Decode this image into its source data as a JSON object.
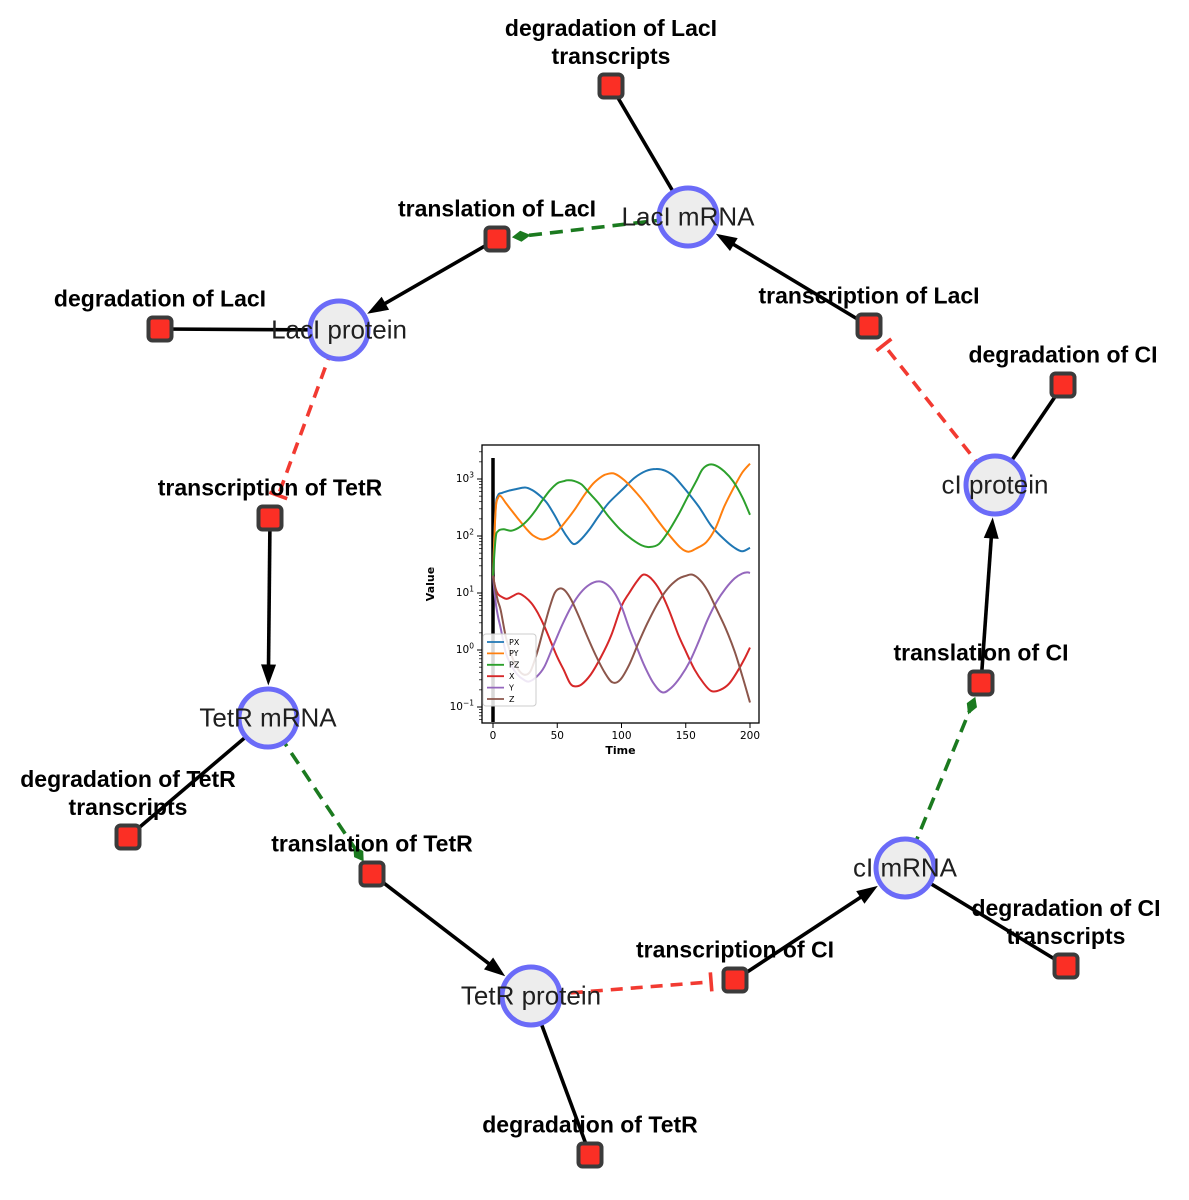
{
  "diagram": {
    "colors": {
      "species_fill": "#ededed",
      "species_border": "#6b6bf8",
      "reaction_fill": "#fb2f25",
      "reaction_border": "#3b3b3b",
      "edge": "#000000",
      "modifier_edge": "#1b7a1f",
      "inhibition_edge": "#f23a31"
    },
    "species": [
      {
        "id": "lacI_mRNA",
        "label": "LacI mRNA"
      },
      {
        "id": "lacI_protein",
        "label": "LacI protein"
      },
      {
        "id": "cI_protein",
        "label": "cI protein"
      },
      {
        "id": "tetR_mRNA",
        "label": "TetR mRNA"
      },
      {
        "id": "cI_mRNA",
        "label": "cI mRNA"
      },
      {
        "id": "tetR_protein",
        "label": "TetR protein"
      }
    ],
    "reactions": [
      {
        "id": "deg_lacI_tr",
        "label_lines": [
          "degradation of LacI",
          "transcripts"
        ]
      },
      {
        "id": "translation_lacI",
        "label_lines": [
          "translation of LacI"
        ]
      },
      {
        "id": "transcription_lacI",
        "label_lines": [
          "transcription of LacI"
        ]
      },
      {
        "id": "deg_lacI",
        "label_lines": [
          "degradation of LacI"
        ]
      },
      {
        "id": "deg_cI",
        "label_lines": [
          "degradation of CI"
        ]
      },
      {
        "id": "transcription_tetR",
        "label_lines": [
          "transcription of TetR"
        ]
      },
      {
        "id": "translation_cI",
        "label_lines": [
          "translation of CI"
        ]
      },
      {
        "id": "deg_tetR_tr",
        "label_lines": [
          "degradation of TetR",
          "transcripts"
        ]
      },
      {
        "id": "translation_tetR",
        "label_lines": [
          "translation of TetR"
        ]
      },
      {
        "id": "deg_cI_tr",
        "label_lines": [
          "degradation of CI",
          "transcripts"
        ]
      },
      {
        "id": "transcription_cI",
        "label_lines": [
          "transcription of CI"
        ]
      },
      {
        "id": "deg_tetR",
        "label_lines": [
          "degradation of TetR"
        ]
      }
    ],
    "edges": [
      {
        "source": "lacI_mRNA",
        "target": "deg_lacI_tr",
        "type": "reactant"
      },
      {
        "source": "transcription_lacI",
        "target": "lacI_mRNA",
        "type": "product"
      },
      {
        "source": "lacI_mRNA",
        "target": "translation_lacI",
        "type": "modifier"
      },
      {
        "source": "translation_lacI",
        "target": "lacI_protein",
        "type": "product"
      },
      {
        "source": "lacI_protein",
        "target": "deg_lacI",
        "type": "reactant"
      },
      {
        "source": "lacI_protein",
        "target": "transcription_tetR",
        "type": "inhibition"
      },
      {
        "source": "transcription_tetR",
        "target": "tetR_mRNA",
        "type": "product"
      },
      {
        "source": "tetR_mRNA",
        "target": "deg_tetR_tr",
        "type": "reactant"
      },
      {
        "source": "tetR_mRNA",
        "target": "translation_tetR",
        "type": "modifier"
      },
      {
        "source": "translation_tetR",
        "target": "tetR_protein",
        "type": "product"
      },
      {
        "source": "tetR_protein",
        "target": "deg_tetR",
        "type": "reactant"
      },
      {
        "source": "tetR_protein",
        "target": "transcription_cI",
        "type": "inhibition"
      },
      {
        "source": "transcription_cI",
        "target": "cI_mRNA",
        "type": "product"
      },
      {
        "source": "cI_mRNA",
        "target": "deg_cI_tr",
        "type": "reactant"
      },
      {
        "source": "cI_mRNA",
        "target": "translation_cI",
        "type": "modifier"
      },
      {
        "source": "translation_cI",
        "target": "cI_protein",
        "type": "product"
      },
      {
        "source": "cI_protein",
        "target": "deg_cI",
        "type": "reactant"
      },
      {
        "source": "cI_protein",
        "target": "transcription_lacI",
        "type": "inhibition"
      }
    ]
  },
  "chart_data": {
    "type": "line",
    "x_label": "Time",
    "y_label": "Value",
    "x_ticks": [
      0,
      50,
      100,
      150,
      200
    ],
    "y_scale": "log",
    "y_tick_exponents": [
      3,
      2,
      1,
      0,
      -1
    ],
    "x_range": [
      -8.5,
      208.5
    ],
    "y_exp_range": [
      -1.28,
      3.6
    ],
    "grid": false,
    "legend_position": "lower left",
    "initial_marker_x": 0,
    "series": [
      {
        "name": "PX",
        "color": "#1f77b4",
        "points": [
          [
            0,
            20
          ],
          [
            2,
            300
          ],
          [
            4,
            520
          ],
          [
            7,
            570
          ],
          [
            12,
            620
          ],
          [
            18,
            665
          ],
          [
            25,
            710
          ],
          [
            30,
            650
          ],
          [
            36,
            520
          ],
          [
            42,
            380
          ],
          [
            48,
            230
          ],
          [
            54,
            130
          ],
          [
            59,
            88
          ],
          [
            63,
            72
          ],
          [
            68,
            85
          ],
          [
            75,
            130
          ],
          [
            82,
            220
          ],
          [
            90,
            380
          ],
          [
            100,
            630
          ],
          [
            110,
            1040
          ],
          [
            119,
            1380
          ],
          [
            127,
            1500
          ],
          [
            134,
            1400
          ],
          [
            141,
            1100
          ],
          [
            150,
            640
          ],
          [
            160,
            330
          ],
          [
            170,
            150
          ],
          [
            180,
            87
          ],
          [
            188,
            62
          ],
          [
            194,
            54
          ],
          [
            200,
            62
          ]
        ]
      },
      {
        "name": "PY",
        "color": "#ff7f0e",
        "points": [
          [
            0,
            20
          ],
          [
            2,
            280
          ],
          [
            4,
            470
          ],
          [
            6,
            500
          ],
          [
            10,
            380
          ],
          [
            15,
            270
          ],
          [
            20,
            195
          ],
          [
            26,
            133
          ],
          [
            31,
            103
          ],
          [
            38,
            87
          ],
          [
            44,
            95
          ],
          [
            50,
            120
          ],
          [
            57,
            185
          ],
          [
            64,
            300
          ],
          [
            71,
            520
          ],
          [
            78,
            830
          ],
          [
            85,
            1120
          ],
          [
            90,
            1240
          ],
          [
            95,
            1230
          ],
          [
            102,
            960
          ],
          [
            110,
            630
          ],
          [
            119,
            360
          ],
          [
            128,
            190
          ],
          [
            137,
            105
          ],
          [
            146,
            62
          ],
          [
            152,
            53
          ],
          [
            158,
            60
          ],
          [
            166,
            78
          ],
          [
            173,
            135
          ],
          [
            180,
            330
          ],
          [
            187,
            680
          ],
          [
            194,
            1300
          ],
          [
            200,
            1860
          ]
        ]
      },
      {
        "name": "PZ",
        "color": "#2ca02c",
        "points": [
          [
            0,
            20
          ],
          [
            2,
            90
          ],
          [
            4,
            122
          ],
          [
            8,
            131
          ],
          [
            14,
            124
          ],
          [
            20,
            140
          ],
          [
            26,
            180
          ],
          [
            32,
            260
          ],
          [
            38,
            410
          ],
          [
            44,
            620
          ],
          [
            50,
            840
          ],
          [
            55,
            915
          ],
          [
            58,
            950
          ],
          [
            63,
            925
          ],
          [
            69,
            800
          ],
          [
            75,
            565
          ],
          [
            82,
            380
          ],
          [
            90,
            220
          ],
          [
            99,
            130
          ],
          [
            108,
            88
          ],
          [
            116,
            68
          ],
          [
            122,
            64
          ],
          [
            129,
            72
          ],
          [
            136,
            115
          ],
          [
            144,
            230
          ],
          [
            151,
            460
          ],
          [
            158,
            900
          ],
          [
            163,
            1480
          ],
          [
            168,
            1780
          ],
          [
            173,
            1740
          ],
          [
            180,
            1360
          ],
          [
            187,
            900
          ],
          [
            194,
            480
          ],
          [
            200,
            235
          ]
        ]
      },
      {
        "name": "X",
        "color": "#d62728",
        "points": [
          [
            0,
            20
          ],
          [
            2,
            12
          ],
          [
            4,
            9.5
          ],
          [
            7,
            8.5
          ],
          [
            11,
            7.9
          ],
          [
            16,
            9
          ],
          [
            20,
            9.8
          ],
          [
            25,
            8.5
          ],
          [
            30,
            6.6
          ],
          [
            35,
            4.4
          ],
          [
            40,
            2.6
          ],
          [
            45,
            1.4
          ],
          [
            50,
            0.75
          ],
          [
            55,
            0.45
          ],
          [
            60,
            0.26
          ],
          [
            64,
            0.23
          ],
          [
            69,
            0.25
          ],
          [
            76,
            0.37
          ],
          [
            84,
            0.75
          ],
          [
            92,
            1.8
          ],
          [
            100,
            5.9
          ],
          [
            106,
            10
          ],
          [
            112,
            16
          ],
          [
            117,
            21
          ],
          [
            123,
            18
          ],
          [
            130,
            11
          ],
          [
            137,
            5
          ],
          [
            144,
            1.9
          ],
          [
            150,
            0.95
          ],
          [
            157,
            0.45
          ],
          [
            164,
            0.26
          ],
          [
            170,
            0.19
          ],
          [
            177,
            0.2
          ],
          [
            184,
            0.26
          ],
          [
            191,
            0.45
          ],
          [
            196,
            0.72
          ],
          [
            200,
            1.1
          ]
        ]
      },
      {
        "name": "Y",
        "color": "#9467bd",
        "points": [
          [
            0,
            20
          ],
          [
            2,
            7
          ],
          [
            4,
            3.8
          ],
          [
            6,
            2.4
          ],
          [
            10,
            0.89
          ],
          [
            14,
            0.55
          ],
          [
            19,
            0.37
          ],
          [
            24,
            0.3
          ],
          [
            28,
            0.28
          ],
          [
            34,
            0.34
          ],
          [
            40,
            0.51
          ],
          [
            47,
            1.2
          ],
          [
            54,
            2.8
          ],
          [
            61,
            5.8
          ],
          [
            68,
            10
          ],
          [
            75,
            14
          ],
          [
            82,
            16
          ],
          [
            88,
            14.5
          ],
          [
            94,
            10.5
          ],
          [
            100,
            5.8
          ],
          [
            106,
            2.4
          ],
          [
            112,
            1.1
          ],
          [
            118,
            0.52
          ],
          [
            125,
            0.26
          ],
          [
            132,
            0.18
          ],
          [
            139,
            0.22
          ],
          [
            146,
            0.34
          ],
          [
            153,
            0.62
          ],
          [
            160,
            1.4
          ],
          [
            167,
            3.4
          ],
          [
            174,
            7
          ],
          [
            181,
            12
          ],
          [
            188,
            18
          ],
          [
            194,
            22
          ],
          [
            198,
            23
          ],
          [
            200,
            22.4
          ]
        ]
      },
      {
        "name": "Z",
        "color": "#8c564b",
        "points": [
          [
            0,
            20
          ],
          [
            2,
            11
          ],
          [
            4,
            7
          ],
          [
            6,
            5
          ],
          [
            10,
            1.7
          ],
          [
            14,
            0.85
          ],
          [
            19,
            0.48
          ],
          [
            24,
            0.37
          ],
          [
            29,
            0.42
          ],
          [
            34,
            0.85
          ],
          [
            39,
            2.2
          ],
          [
            44,
            5.5
          ],
          [
            48,
            10
          ],
          [
            52,
            12
          ],
          [
            56,
            11
          ],
          [
            61,
            7.5
          ],
          [
            67,
            3.8
          ],
          [
            73,
            1.8
          ],
          [
            80,
            0.8
          ],
          [
            87,
            0.4
          ],
          [
            93,
            0.27
          ],
          [
            99,
            0.3
          ],
          [
            106,
            0.55
          ],
          [
            113,
            1.3
          ],
          [
            120,
            2.9
          ],
          [
            128,
            6.5
          ],
          [
            136,
            12
          ],
          [
            144,
            17.5
          ],
          [
            150,
            20
          ],
          [
            155,
            21
          ],
          [
            161,
            17
          ],
          [
            167,
            11
          ],
          [
            174,
            5.2
          ],
          [
            181,
            2.4
          ],
          [
            188,
            0.95
          ],
          [
            194,
            0.35
          ],
          [
            200,
            0.12
          ]
        ]
      }
    ]
  }
}
